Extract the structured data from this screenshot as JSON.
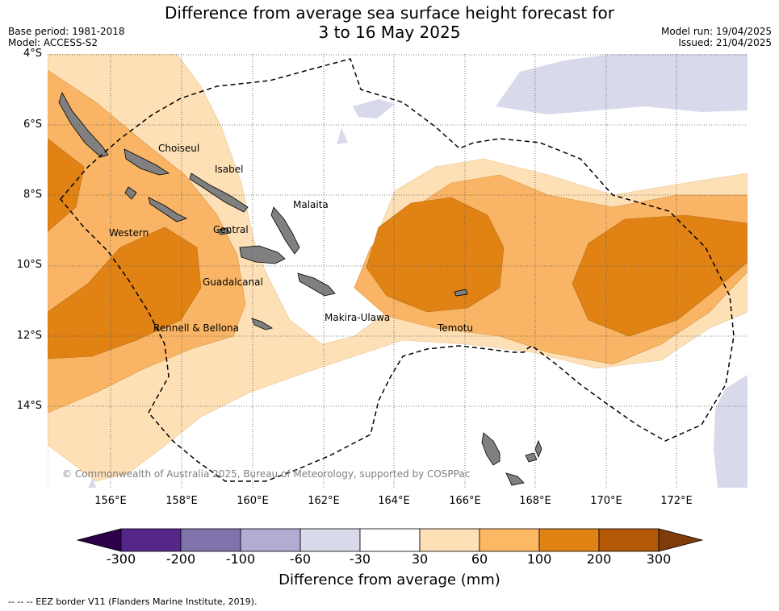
{
  "header": {
    "title_line1": "Difference from average sea surface height forecast for",
    "title_line2": "3 to 16 May 2025",
    "base_period": "Base period: 1981-2018",
    "model": "Model: ACCESS-S2",
    "model_run": "Model run: 19/04/2025",
    "issued": "Issued: 21/04/2025"
  },
  "map": {
    "lat_labels": [
      "4°S",
      "6°S",
      "8°S",
      "10°S",
      "12°S",
      "14°S"
    ],
    "lon_labels": [
      "156°E",
      "158°E",
      "160°E",
      "162°E",
      "164°E",
      "166°E",
      "168°E",
      "170°E",
      "172°E"
    ],
    "places": [
      "Choiseul",
      "Isabel",
      "Malaita",
      "Western",
      "Central",
      "Guadalcanal",
      "Makira-Ulawa",
      "Rennell & Bellona",
      "Temotu"
    ],
    "copyright": "© Commonwealth of Australia 2025, Bureau of Meteorology, supported by COSPPac",
    "colors": {
      "ocean": "#ffffff",
      "p30": "#fde0b6",
      "p60": "#f9b565",
      "p100": "#e08214",
      "n30": "#d8daeb",
      "land": "#808080",
      "grid": "#555555"
    }
  },
  "colorbar": {
    "ticks": [
      "-300",
      "-200",
      "-100",
      "-60",
      "-30",
      "30",
      "60",
      "100",
      "200",
      "300"
    ],
    "colors": [
      "#542788",
      "#8073ac",
      "#b2abd2",
      "#d8daeb",
      "#ffffff",
      "#fee0b6",
      "#fdb863",
      "#e08214",
      "#b35806"
    ],
    "under_color": "#2d004b",
    "over_color": "#7f3b08",
    "title": "Difference from average (mm)"
  },
  "footnote": "--  --  -- EEZ border V11 (Flanders Marine Institute, 2019)."
}
